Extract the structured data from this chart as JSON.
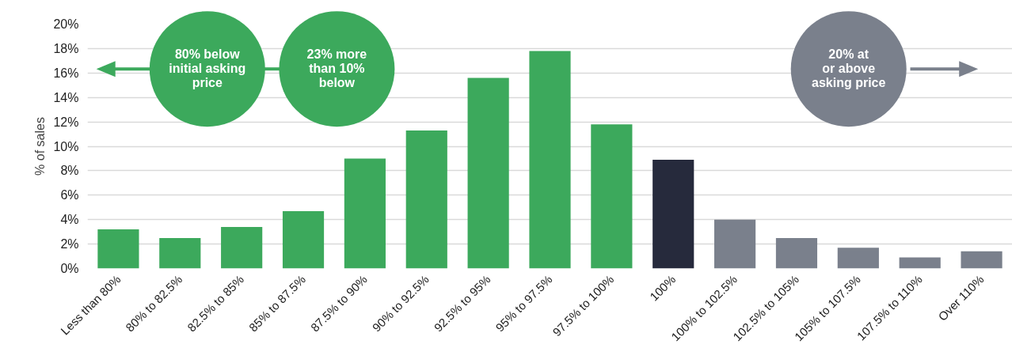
{
  "chart_data": {
    "type": "bar",
    "ylabel": "% of sales",
    "categories": [
      "Less than 80%",
      "80% to 82.5%",
      "82.5% to 85%",
      "85% to 87.5%",
      "87.5% to 90%",
      "90% to 92.5%",
      "92.5% to 95%",
      "95% to 97.5%",
      "97.5% to 100%",
      "100%",
      "100% to 102.5%",
      "102.5% to 105%",
      "105% to 107.5%",
      "107.5% to 110%",
      "Over 110%"
    ],
    "values": [
      3.2,
      2.5,
      3.4,
      4.7,
      9.0,
      11.3,
      15.6,
      17.8,
      11.8,
      8.9,
      4.0,
      2.5,
      1.7,
      0.9,
      1.4
    ],
    "colors": [
      "#3ca95c",
      "#3ca95c",
      "#3ca95c",
      "#3ca95c",
      "#3ca95c",
      "#3ca95c",
      "#3ca95c",
      "#3ca95c",
      "#3ca95c",
      "#262a3c",
      "#7a808c",
      "#7a808c",
      "#7a808c",
      "#7a808c",
      "#7a808c"
    ],
    "ylim": [
      0,
      20
    ],
    "yticks": [
      {
        "value": 0,
        "label": "0%"
      },
      {
        "value": 2,
        "label": "2%"
      },
      {
        "value": 4,
        "label": "4%"
      },
      {
        "value": 6,
        "label": "6%"
      },
      {
        "value": 8,
        "label": "8%"
      },
      {
        "value": 10,
        "label": "10%"
      },
      {
        "value": 12,
        "label": "12%"
      },
      {
        "value": 14,
        "label": "14%"
      },
      {
        "value": 16,
        "label": "16%"
      },
      {
        "value": 18,
        "label": "18%"
      },
      {
        "value": 20,
        "label": "20%"
      }
    ],
    "grid": "y",
    "annotations": [
      "80% below\ninitial asking\nprice",
      "23% more\nthan 10%\nbelow",
      "20% at\nor above\nasking price"
    ]
  }
}
